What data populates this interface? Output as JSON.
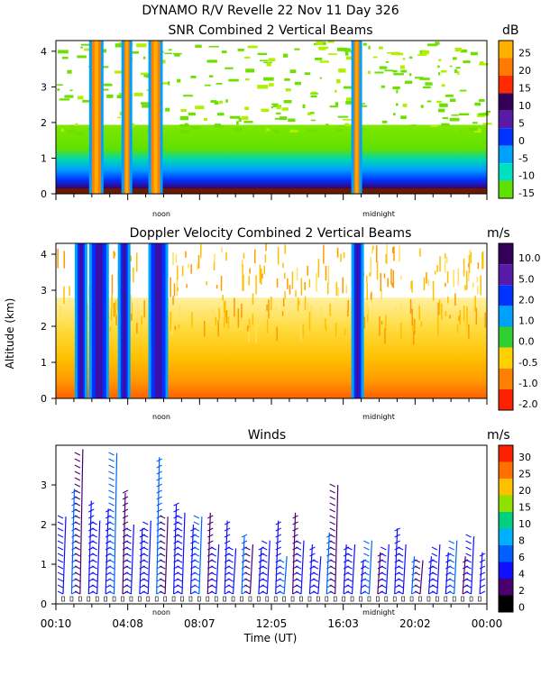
{
  "header": {
    "title": "DYNAMO R/V Revelle  22 Nov 11 Day 326"
  },
  "chart_data": [
    {
      "type": "heatmap",
      "title": "SNR Combined 2 Vertical Beams",
      "ylabel": "Altitude (km)",
      "ylim": [
        0,
        4.3
      ],
      "yticks": [
        "0",
        "1",
        "2",
        "3",
        "4"
      ],
      "x_marks": [
        "noon",
        "midnight"
      ],
      "colorbar": {
        "unit": "dB",
        "labels": [
          "25",
          "20",
          "15",
          "10",
          "5",
          "0",
          "-5",
          "-10",
          "-15"
        ],
        "colors": [
          "#ffb000",
          "#ff7a00",
          "#ff2a00",
          "#35005a",
          "#5a1aa8",
          "#0033ff",
          "#00a0ff",
          "#00e0c0",
          "#60e000"
        ]
      },
      "columns": [
        {
          "name": "rain-column-1",
          "start_hour": 2.0,
          "end_hour": 2.5,
          "top_km": 4.3
        },
        {
          "name": "rain-column-2",
          "start_hour": 3.8,
          "end_hour": 4.1,
          "top_km": 4.3
        },
        {
          "name": "rain-column-3",
          "start_hour": 5.3,
          "end_hour": 5.8,
          "top_km": 4.3
        },
        {
          "name": "rain-column-4",
          "start_hour": 16.6,
          "end_hour": 16.9,
          "top_km": 4.3
        }
      ]
    },
    {
      "type": "heatmap",
      "title": "Doppler Velocity Combined 2 Vertical Beams",
      "ylabel": "Altitude (km)",
      "ylim": [
        0,
        4.3
      ],
      "yticks": [
        "0",
        "1",
        "2",
        "3",
        "4"
      ],
      "x_marks": [
        "noon",
        "midnight"
      ],
      "colorbar": {
        "unit": "m/s",
        "labels": [
          "10.0",
          "5.0",
          "2.0",
          "1.0",
          "0.0",
          "-0.5",
          "-1.0",
          "-2.0"
        ],
        "colors": [
          "#35005a",
          "#5a1aa8",
          "#0033ff",
          "#00a0ff",
          "#30d030",
          "#ffd000",
          "#ff8000",
          "#ff2000"
        ]
      },
      "columns": [
        {
          "name": "fall-column-1",
          "start_hour": 1.2,
          "end_hour": 1.6,
          "top_km": 4.3
        },
        {
          "name": "fall-column-2",
          "start_hour": 2.0,
          "end_hour": 2.8,
          "top_km": 4.3
        },
        {
          "name": "fall-column-3",
          "start_hour": 3.6,
          "end_hour": 4.0,
          "top_km": 4.3
        },
        {
          "name": "fall-column-4",
          "start_hour": 5.3,
          "end_hour": 6.1,
          "top_km": 4.3
        },
        {
          "name": "fall-column-5",
          "start_hour": 16.6,
          "end_hour": 17.0,
          "top_km": 4.3
        }
      ]
    },
    {
      "type": "scatter",
      "title": "Winds",
      "xlabel": "Time (UT)",
      "ylabel": "Altitude (km)",
      "ylim": [
        0,
        4
      ],
      "yticks": [
        "0",
        "1",
        "2",
        "3"
      ],
      "xticks": [
        "00:10",
        "04:08",
        "08:07",
        "12:05",
        "16:03",
        "20:02",
        "00:00"
      ],
      "x_marks": [
        "noon",
        "midnight"
      ],
      "colorbar": {
        "unit": "m/s",
        "labels": [
          "30",
          "25",
          "20",
          "15",
          "10",
          "8",
          "6",
          "4",
          "2",
          "0"
        ],
        "colors": [
          "#ff2000",
          "#ff7000",
          "#ffc000",
          "#90e000",
          "#00d080",
          "#00b0ff",
          "#0060ff",
          "#1010ff",
          "#4b0070",
          "#000000"
        ]
      },
      "profile_count": 50,
      "profile_tops_km": [
        2.2,
        2.9,
        3.9,
        2.6,
        2.1,
        2.4,
        3.8,
        2.8,
        2.0,
        1.9,
        2.1,
        3.7,
        2.2,
        2.5,
        2.3,
        2.0,
        2.2,
        2.3,
        1.5,
        2.1,
        1.4,
        1.7,
        1.5,
        1.4,
        1.6,
        2.1,
        1.2,
        2.3,
        1.6,
        1.5,
        1.2,
        1.8,
        3.0,
        1.5,
        1.5,
        1.1,
        1.6,
        1.3,
        1.5,
        1.9,
        1.5,
        1.2,
        1.1,
        1.2,
        1.5,
        1.3,
        1.6,
        1.2,
        1.7,
        1.3
      ]
    }
  ]
}
